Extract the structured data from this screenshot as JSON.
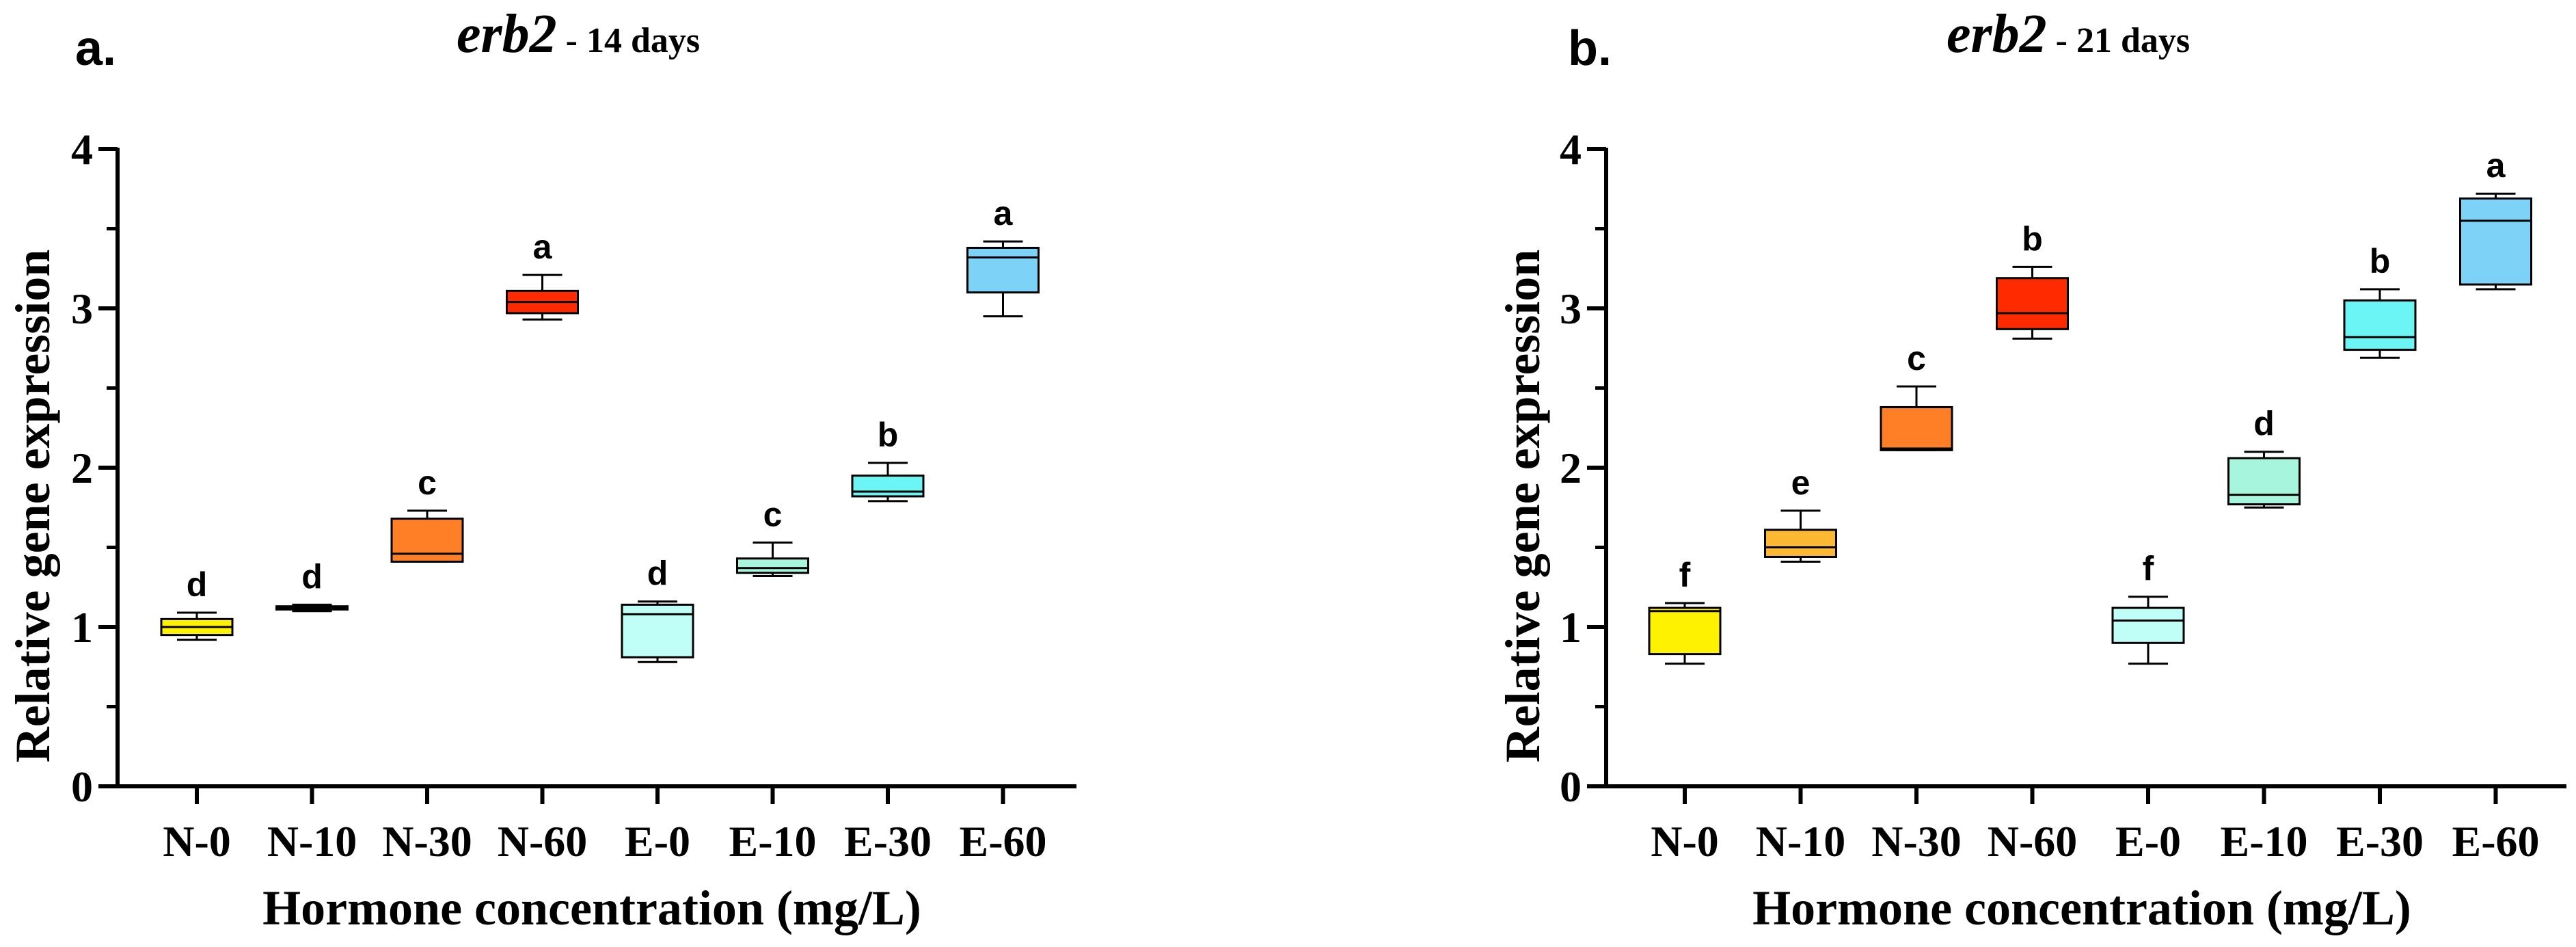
{
  "chart_data": [
    {
      "type": "box",
      "panel": "a.",
      "title": {
        "gene": "erb2",
        "suffix": " - 14 days"
      },
      "xlabel": "Hormone concentration (mg/L)",
      "ylabel": "Relative gene expression",
      "ylim": [
        0,
        4
      ],
      "yticks": [
        0,
        1,
        2,
        3,
        4
      ],
      "categories": [
        "N-0",
        "N-10",
        "N-30",
        "N-60",
        "E-0",
        "E-10",
        "E-30",
        "E-60"
      ],
      "boxes": [
        {
          "min": 0.92,
          "q1": 0.95,
          "median": 1.0,
          "q3": 1.05,
          "max": 1.09,
          "color": "#FFF200",
          "letter": "d"
        },
        {
          "min": 1.1,
          "q1": 1.11,
          "median": 1.12,
          "q3": 1.13,
          "max": 1.14,
          "color": "#FDB933",
          "letter": "d"
        },
        {
          "min": 1.41,
          "q1": 1.41,
          "median": 1.46,
          "q3": 1.68,
          "max": 1.73,
          "color": "#FF7F27",
          "letter": "c"
        },
        {
          "min": 2.93,
          "q1": 2.97,
          "median": 3.04,
          "q3": 3.11,
          "max": 3.21,
          "color": "#FF2A00",
          "letter": "a"
        },
        {
          "min": 0.78,
          "q1": 0.81,
          "median": 1.08,
          "q3": 1.14,
          "max": 1.16,
          "color": "#BFFFF7",
          "letter": "d"
        },
        {
          "min": 1.32,
          "q1": 1.34,
          "median": 1.37,
          "q3": 1.43,
          "max": 1.53,
          "color": "#A8F5DD",
          "letter": "c"
        },
        {
          "min": 1.79,
          "q1": 1.82,
          "median": 1.85,
          "q3": 1.95,
          "max": 2.03,
          "color": "#6BF5F5",
          "letter": "b"
        },
        {
          "min": 2.95,
          "q1": 3.1,
          "median": 3.32,
          "q3": 3.38,
          "max": 3.42,
          "color": "#7DD3F7",
          "letter": "a"
        }
      ]
    },
    {
      "type": "box",
      "panel": "b.",
      "title": {
        "gene": "erb2",
        "suffix": " - 21 days"
      },
      "xlabel": "Hormone concentration (mg/L)",
      "ylabel": "Relative gene expression",
      "ylim": [
        0,
        4
      ],
      "yticks": [
        0,
        1,
        2,
        3,
        4
      ],
      "categories": [
        "N-0",
        "N-10",
        "N-30",
        "N-60",
        "E-0",
        "E-10",
        "E-30",
        "E-60"
      ],
      "boxes": [
        {
          "min": 0.77,
          "q1": 0.83,
          "median": 1.1,
          "q3": 1.12,
          "max": 1.15,
          "color": "#FFF200",
          "letter": "f"
        },
        {
          "min": 1.41,
          "q1": 1.44,
          "median": 1.5,
          "q3": 1.61,
          "max": 1.73,
          "color": "#FDB933",
          "letter": "e"
        },
        {
          "min": 2.11,
          "q1": 2.11,
          "median": 2.12,
          "q3": 2.38,
          "max": 2.51,
          "color": "#FF7F27",
          "letter": "c"
        },
        {
          "min": 2.81,
          "q1": 2.87,
          "median": 2.97,
          "q3": 3.19,
          "max": 3.26,
          "color": "#FF2A00",
          "letter": "b"
        },
        {
          "min": 0.77,
          "q1": 0.9,
          "median": 1.04,
          "q3": 1.12,
          "max": 1.19,
          "color": "#BFFFF7",
          "letter": "f"
        },
        {
          "min": 1.75,
          "q1": 1.77,
          "median": 1.83,
          "q3": 2.06,
          "max": 2.1,
          "color": "#A8F5DD",
          "letter": "d"
        },
        {
          "min": 2.69,
          "q1": 2.74,
          "median": 2.82,
          "q3": 3.05,
          "max": 3.12,
          "color": "#6BF5F5",
          "letter": "b"
        },
        {
          "min": 3.12,
          "q1": 3.15,
          "median": 3.55,
          "q3": 3.69,
          "max": 3.72,
          "color": "#7DD3F7",
          "letter": "a"
        }
      ]
    }
  ]
}
